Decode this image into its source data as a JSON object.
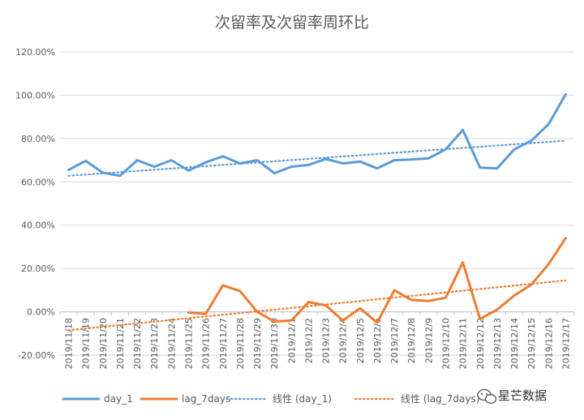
{
  "chart_data": {
    "type": "line",
    "title": "次留率及次留率周环比",
    "xlabel": "",
    "ylabel": "",
    "ylim": [
      -0.2,
      1.2
    ],
    "y_ticks": [
      "-20.00%",
      "0.00%",
      "20.00%",
      "40.00%",
      "60.00%",
      "80.00%",
      "100.00%",
      "120.00%"
    ],
    "grid": true,
    "legend_position": "bottom",
    "categories": [
      "2019/11/18",
      "2019/11/19",
      "2019/11/20",
      "2019/11/21",
      "2019/11/22",
      "2019/11/23",
      "2019/11/24",
      "2019/11/25",
      "2019/11/26",
      "2019/11/27",
      "2019/11/28",
      "2019/11/29",
      "2019/11/30",
      "2019/12/1",
      "2019/12/2",
      "2019/12/3",
      "2019/12/4",
      "2019/12/5",
      "2019/12/6",
      "2019/12/7",
      "2019/12/8",
      "2019/12/9",
      "2019/12/10",
      "2019/12/11",
      "2019/12/12",
      "2019/12/13",
      "2019/12/14",
      "2019/12/15",
      "2019/12/16",
      "2019/12/17"
    ],
    "series": [
      {
        "name": "day_1",
        "color": "#5B9BD5",
        "values": [
          0.655,
          0.697,
          0.642,
          0.628,
          0.7,
          0.67,
          0.7,
          0.652,
          0.69,
          0.718,
          0.685,
          0.7,
          0.64,
          0.67,
          0.678,
          0.706,
          0.685,
          0.694,
          0.662,
          0.7,
          0.703,
          0.709,
          0.75,
          0.84,
          0.666,
          0.662,
          0.75,
          0.79,
          0.866,
          1.004
        ]
      },
      {
        "name": "lag_7days",
        "color": "#ED7D31",
        "values": [
          null,
          null,
          null,
          null,
          null,
          null,
          null,
          -0.003,
          -0.01,
          0.122,
          0.096,
          0.0,
          -0.045,
          -0.04,
          0.045,
          0.03,
          -0.04,
          0.016,
          -0.05,
          0.1,
          0.055,
          0.05,
          0.065,
          0.228,
          -0.033,
          0.01,
          0.075,
          0.126,
          0.22,
          0.34
        ]
      }
    ],
    "trendlines": [
      {
        "name": "线性 (day_1)",
        "color": "#5B9BD5",
        "start": 0.628,
        "end": 0.79
      },
      {
        "name": "线性 (lag_7days)",
        "color": "#ED7D31",
        "start": -0.085,
        "end": 0.145
      }
    ]
  },
  "watermark": {
    "icon": "wechat-icon",
    "text": "星芒数据"
  }
}
